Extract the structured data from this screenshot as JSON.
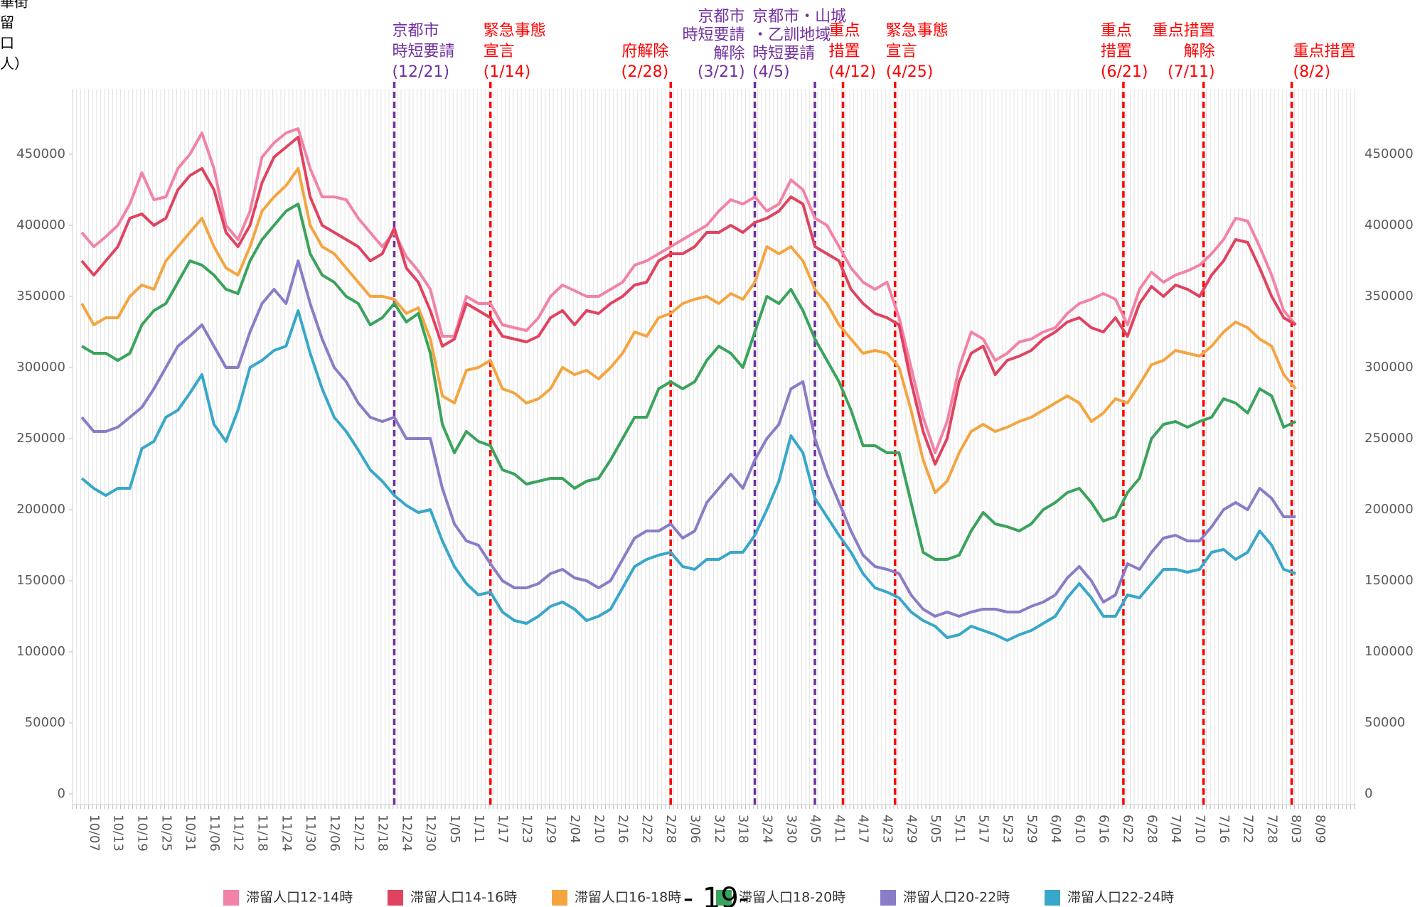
{
  "chart_data": {
    "type": "line",
    "y_label_lines": [
      "華街",
      "留",
      "口",
      "人）"
    ],
    "page_number": "- 19-",
    "categories": [
      null,
      "10/07",
      null,
      "10/13",
      null,
      "10/19",
      null,
      "10/25",
      null,
      "10/31",
      null,
      "11/06",
      null,
      "11/12",
      null,
      "11/18",
      null,
      "11/24",
      null,
      "11/30",
      null,
      "12/06",
      null,
      "12/12",
      null,
      "12/18",
      null,
      "12/24",
      null,
      "12/30",
      null,
      "1/05",
      null,
      "1/11",
      null,
      "1/17",
      null,
      "1/23",
      null,
      "1/29",
      null,
      "2/04",
      null,
      "2/10",
      null,
      "2/16",
      null,
      "2/22",
      null,
      "2/28",
      null,
      "3/06",
      null,
      "3/12",
      null,
      "3/18",
      null,
      "3/24",
      null,
      "3/30",
      null,
      "4/05",
      null,
      "4/11",
      null,
      "4/17",
      null,
      "4/23",
      null,
      "4/29",
      null,
      "5/05",
      null,
      "5/11",
      null,
      "5/17",
      null,
      "5/23",
      null,
      "5/29",
      null,
      "6/04",
      null,
      "6/10",
      null,
      "6/16",
      null,
      "6/22",
      null,
      "6/28",
      null,
      "7/04",
      null,
      "7/10",
      null,
      "7/16",
      null,
      "7/22",
      null,
      "7/28",
      null,
      "8/03",
      null,
      "8/09"
    ],
    "ylim": [
      -7500,
      496000
    ],
    "yticks": [
      0,
      50000,
      100000,
      150000,
      200000,
      250000,
      300000,
      350000,
      400000,
      450000
    ],
    "series": [
      {
        "name": "滞留人口12-14時",
        "color": "#f283a6",
        "values": [
          395000,
          385000,
          392000,
          400000,
          415000,
          437000,
          418000,
          420000,
          440000,
          450000,
          465000,
          440000,
          400000,
          390000,
          410000,
          448000,
          458000,
          465000,
          468000,
          440000,
          420000,
          420000,
          418000,
          405000,
          395000,
          385000,
          395000,
          378000,
          368000,
          355000,
          322000,
          322000,
          350000,
          345000,
          345000,
          330000,
          328000,
          326000,
          335000,
          350000,
          358000,
          354000,
          350000,
          350000,
          355000,
          360000,
          372000,
          375000,
          380000,
          385000,
          390000,
          395000,
          400000,
          410000,
          418000,
          415000,
          420000,
          410000,
          415000,
          432000,
          425000,
          405000,
          400000,
          385000,
          370000,
          360000,
          355000,
          360000,
          335000,
          300000,
          265000,
          240000,
          262000,
          300000,
          325000,
          320000,
          305000,
          310000,
          318000,
          320000,
          325000,
          328000,
          338000,
          345000,
          348000,
          352000,
          348000,
          330000,
          355000,
          367000,
          360000,
          365000,
          368000,
          372000,
          380000,
          390000,
          405000,
          403000,
          385000,
          365000,
          340000,
          330000,
          null,
          null
        ]
      },
      {
        "name": "滞留人口14-16時",
        "color": "#e0435f",
        "values": [
          375000,
          365000,
          375000,
          385000,
          405000,
          408000,
          400000,
          405000,
          425000,
          435000,
          440000,
          425000,
          395000,
          385000,
          400000,
          430000,
          448000,
          455000,
          462000,
          420000,
          400000,
          395000,
          390000,
          385000,
          375000,
          380000,
          398000,
          370000,
          360000,
          340000,
          315000,
          320000,
          345000,
          340000,
          335000,
          322000,
          320000,
          318000,
          322000,
          335000,
          340000,
          330000,
          340000,
          338000,
          345000,
          350000,
          358000,
          360000,
          375000,
          380000,
          380000,
          385000,
          395000,
          395000,
          400000,
          395000,
          402000,
          405000,
          410000,
          420000,
          415000,
          385000,
          380000,
          375000,
          355000,
          345000,
          338000,
          335000,
          330000,
          290000,
          255000,
          232000,
          250000,
          290000,
          310000,
          315000,
          295000,
          305000,
          308000,
          312000,
          320000,
          325000,
          332000,
          335000,
          328000,
          325000,
          335000,
          322000,
          345000,
          357000,
          350000,
          358000,
          355000,
          350000,
          365000,
          375000,
          390000,
          388000,
          370000,
          350000,
          335000,
          330000,
          null,
          null
        ]
      },
      {
        "name": "滞留人口16-18時",
        "color": "#f4a540",
        "values": [
          345000,
          330000,
          335000,
          335000,
          350000,
          358000,
          355000,
          375000,
          385000,
          395000,
          405000,
          385000,
          370000,
          365000,
          385000,
          410000,
          420000,
          428000,
          440000,
          400000,
          385000,
          380000,
          370000,
          360000,
          350000,
          350000,
          348000,
          338000,
          342000,
          320000,
          280000,
          275000,
          298000,
          300000,
          305000,
          285000,
          282000,
          275000,
          278000,
          285000,
          300000,
          295000,
          298000,
          292000,
          300000,
          310000,
          325000,
          322000,
          335000,
          338000,
          345000,
          348000,
          350000,
          345000,
          352000,
          348000,
          360000,
          385000,
          380000,
          385000,
          375000,
          355000,
          345000,
          330000,
          320000,
          310000,
          312000,
          310000,
          300000,
          270000,
          235000,
          212000,
          220000,
          240000,
          255000,
          260000,
          255000,
          258000,
          262000,
          265000,
          270000,
          275000,
          280000,
          275000,
          262000,
          268000,
          278000,
          275000,
          288000,
          302000,
          305000,
          312000,
          310000,
          308000,
          315000,
          325000,
          332000,
          328000,
          320000,
          315000,
          295000,
          285000,
          null,
          null
        ]
      },
      {
        "name": "滞留人口18-20時",
        "color": "#3aa35c",
        "values": [
          315000,
          310000,
          310000,
          305000,
          310000,
          330000,
          340000,
          345000,
          360000,
          375000,
          372000,
          365000,
          355000,
          352000,
          375000,
          390000,
          400000,
          410000,
          415000,
          380000,
          365000,
          360000,
          350000,
          345000,
          330000,
          335000,
          345000,
          332000,
          338000,
          310000,
          260000,
          240000,
          255000,
          248000,
          245000,
          228000,
          225000,
          218000,
          220000,
          222000,
          222000,
          215000,
          220000,
          222000,
          235000,
          250000,
          265000,
          265000,
          285000,
          290000,
          285000,
          290000,
          305000,
          315000,
          310000,
          300000,
          325000,
          350000,
          345000,
          355000,
          340000,
          320000,
          305000,
          290000,
          270000,
          245000,
          245000,
          240000,
          240000,
          205000,
          170000,
          165000,
          165000,
          168000,
          185000,
          198000,
          190000,
          188000,
          185000,
          190000,
          200000,
          205000,
          212000,
          215000,
          205000,
          192000,
          195000,
          212000,
          222000,
          250000,
          260000,
          262000,
          258000,
          262000,
          265000,
          278000,
          275000,
          268000,
          285000,
          280000,
          258000,
          262000,
          null,
          null
        ]
      },
      {
        "name": "滞留人口20-22時",
        "color": "#8a7cc6",
        "values": [
          265000,
          255000,
          255000,
          258000,
          265000,
          272000,
          285000,
          300000,
          315000,
          322000,
          330000,
          315000,
          300000,
          300000,
          325000,
          345000,
          355000,
          345000,
          375000,
          345000,
          320000,
          300000,
          290000,
          275000,
          265000,
          262000,
          265000,
          250000,
          250000,
          250000,
          215000,
          190000,
          178000,
          175000,
          162000,
          150000,
          145000,
          145000,
          148000,
          155000,
          158000,
          152000,
          150000,
          145000,
          150000,
          165000,
          180000,
          185000,
          185000,
          190000,
          180000,
          185000,
          205000,
          215000,
          225000,
          215000,
          235000,
          250000,
          260000,
          285000,
          290000,
          250000,
          225000,
          205000,
          185000,
          168000,
          160000,
          158000,
          155000,
          140000,
          130000,
          125000,
          128000,
          125000,
          128000,
          130000,
          130000,
          128000,
          128000,
          132000,
          135000,
          140000,
          152000,
          160000,
          150000,
          135000,
          140000,
          162000,
          158000,
          170000,
          180000,
          182000,
          178000,
          178000,
          188000,
          200000,
          205000,
          200000,
          215000,
          208000,
          195000,
          195000,
          null,
          null
        ]
      },
      {
        "name": "滞留人口22-24時",
        "color": "#38a7c9",
        "values": [
          222000,
          215000,
          210000,
          215000,
          215000,
          243000,
          248000,
          265000,
          270000,
          282000,
          295000,
          260000,
          248000,
          270000,
          300000,
          305000,
          312000,
          315000,
          340000,
          310000,
          285000,
          265000,
          255000,
          242000,
          228000,
          220000,
          210000,
          203000,
          198000,
          200000,
          178000,
          160000,
          148000,
          140000,
          142000,
          128000,
          122000,
          120000,
          125000,
          132000,
          135000,
          130000,
          122000,
          125000,
          130000,
          145000,
          160000,
          165000,
          168000,
          170000,
          160000,
          158000,
          165000,
          165000,
          170000,
          170000,
          182000,
          200000,
          220000,
          252000,
          240000,
          208000,
          195000,
          182000,
          170000,
          155000,
          145000,
          142000,
          138000,
          128000,
          122000,
          118000,
          110000,
          112000,
          118000,
          115000,
          112000,
          108000,
          112000,
          115000,
          120000,
          125000,
          138000,
          148000,
          138000,
          125000,
          125000,
          140000,
          138000,
          148000,
          158000,
          158000,
          156000,
          158000,
          170000,
          172000,
          165000,
          170000,
          185000,
          175000,
          158000,
          155000,
          null,
          null
        ]
      }
    ],
    "annotations": [
      {
        "lines": [
          "京都市",
          "時短要請",
          "(12/21)"
        ],
        "color": "#7030a0"
      },
      {
        "lines": [
          "緊急事態",
          "宣言",
          "(1/14)"
        ],
        "color": "#ff0000"
      },
      {
        "lines": [
          "府解除",
          "(2/28)"
        ],
        "color": "#ff0000"
      },
      {
        "lines": [
          "京都市",
          "時短要請",
          "解除",
          "(3/21)"
        ],
        "color": "#7030a0"
      },
      {
        "lines": [
          "京都市・山城",
          "・乙訓地域",
          "時短要請",
          "(4/5)"
        ],
        "color": "#7030a0"
      },
      {
        "lines": [
          "重点",
          "措置",
          "(4/12)"
        ],
        "color": "#ff0000"
      },
      {
        "lines": [
          "緊急事態",
          "宣言",
          "(4/25)"
        ],
        "color": "#ff0000"
      },
      {
        "lines": [
          "重点",
          "措置",
          "(6/21)"
        ],
        "color": "#ff0000"
      },
      {
        "lines": [
          "重点措置",
          "解除",
          "(7/11)"
        ],
        "color": "#ff0000"
      },
      {
        "lines": [
          "重点措置",
          "(8/2)"
        ],
        "color": "#ff0000"
      }
    ]
  }
}
